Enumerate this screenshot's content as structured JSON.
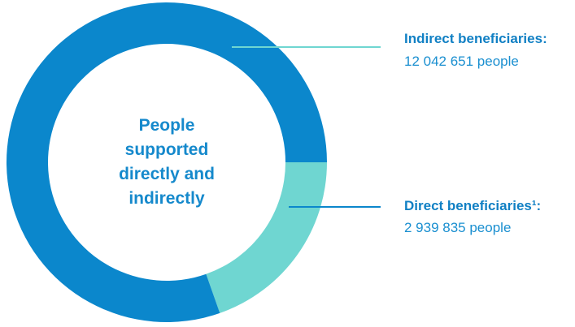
{
  "chart_data": {
    "type": "pie",
    "donut": true,
    "title": "People supported directly and indirectly",
    "categories": [
      "Indirect beneficiaries:",
      "Direct beneficiaries¹:"
    ],
    "values": [
      12042651,
      2939835
    ],
    "value_labels": [
      "12 042 651 people",
      "2 939 835 people"
    ],
    "colors": [
      "#0b87cc",
      "#6fd6d1"
    ]
  }
}
